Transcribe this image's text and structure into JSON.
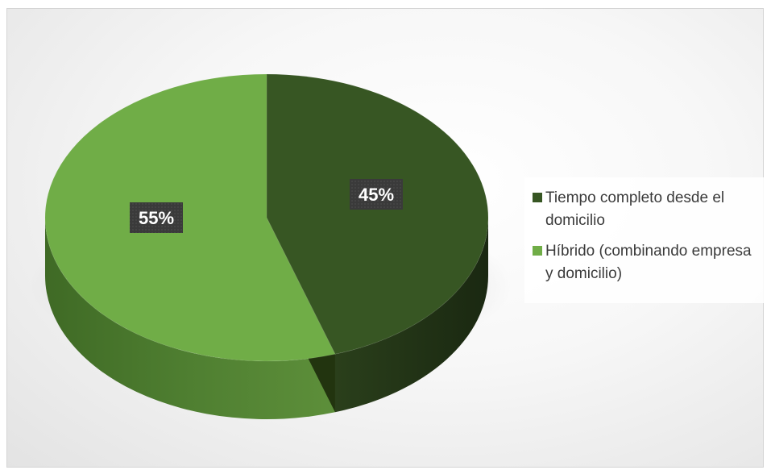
{
  "chart_data": {
    "type": "pie",
    "title": "",
    "categories": [
      "Tiempo completo desde el domicilio",
      "Híbrido (combinando empresa y domicilio)"
    ],
    "values": [
      45,
      55
    ],
    "data_labels": [
      "45%",
      "55%"
    ],
    "colors": [
      "#375623",
      "#70AD47"
    ],
    "legend_position": "right",
    "style": "3d"
  },
  "legend": {
    "items": [
      {
        "label": "Tiempo completo desde el domicilio",
        "color": "#375623"
      },
      {
        "label": "Híbrido (combinando empresa y domicilio)",
        "color": "#70AD47"
      }
    ]
  }
}
